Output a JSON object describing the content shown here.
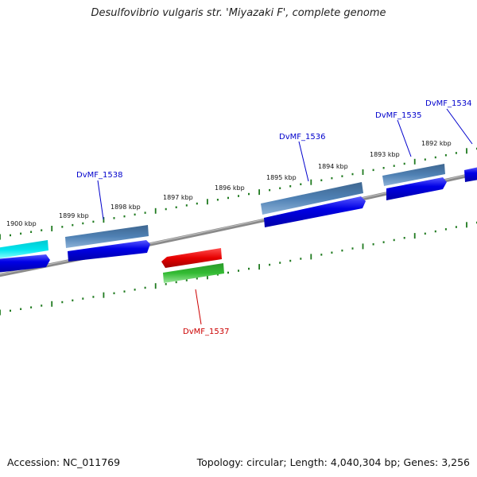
{
  "title": "Desulfovibrio vulgaris str. 'Miyazaki F', complete genome",
  "footer": {
    "accession": "Accession: NC_011769",
    "summary": "Topology: circular; Length: 4,040,304 bp; Genes: 3,256"
  },
  "colors": {
    "background": "#ffffff",
    "backbone": "#8a8a8a",
    "tick": "#1f7a1f",
    "gene_label_forward": "#0000cc",
    "gene_label_reverse": "#cc0000",
    "cds_blue": "#0000e6",
    "gene_steel": "#4f81b4",
    "gene_cyan": "#00e5ee",
    "cds_red": "#e60000",
    "gene_green": "#33bb33"
  },
  "tick_labels": [
    "1900 kbp",
    "1899 kbp",
    "1898 kbp",
    "1897 kbp",
    "1896 kbp",
    "1895 kbp",
    "1894 kbp",
    "1893 kbp",
    "1892 kbp"
  ],
  "genes": [
    {
      "id": "DvMF_1538",
      "strand": "forward"
    },
    {
      "id": "DvMF_1537",
      "strand": "reverse"
    },
    {
      "id": "DvMF_1536",
      "strand": "forward"
    },
    {
      "id": "DvMF_1535",
      "strand": "forward"
    },
    {
      "id": "DvMF_1534",
      "strand": "forward"
    }
  ]
}
